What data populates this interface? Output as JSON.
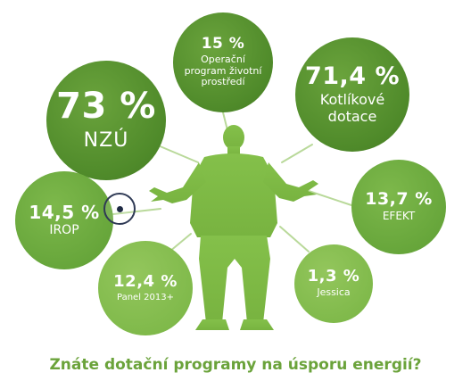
{
  "bubbles": {
    "nzu": {
      "percent": "73 %",
      "label": "NZÚ"
    },
    "op": {
      "percent": "15 %",
      "label_lines": [
        "Operační",
        "program životní",
        "prostředí"
      ]
    },
    "kot": {
      "percent": "71,4 %",
      "label_lines": [
        "Kotlíkové",
        "dotace"
      ]
    },
    "irop": {
      "percent": "14,5 %",
      "label": "IROP"
    },
    "efekt": {
      "percent": "13,7 %",
      "label": "EFEKT"
    },
    "panel": {
      "percent": "12,4 %",
      "label": "Panel 2013+"
    },
    "jes": {
      "percent": "1,3 %",
      "label": "Jessica"
    }
  },
  "headline": "Znáte dotační programy na úsporu energií?",
  "colors": {
    "dark_green": "#4f8a2a",
    "mid_green": "#66a53a",
    "light_green": "#7fb94a",
    "person_green": "#7fba45",
    "headline_green": "#6ba33b"
  }
}
